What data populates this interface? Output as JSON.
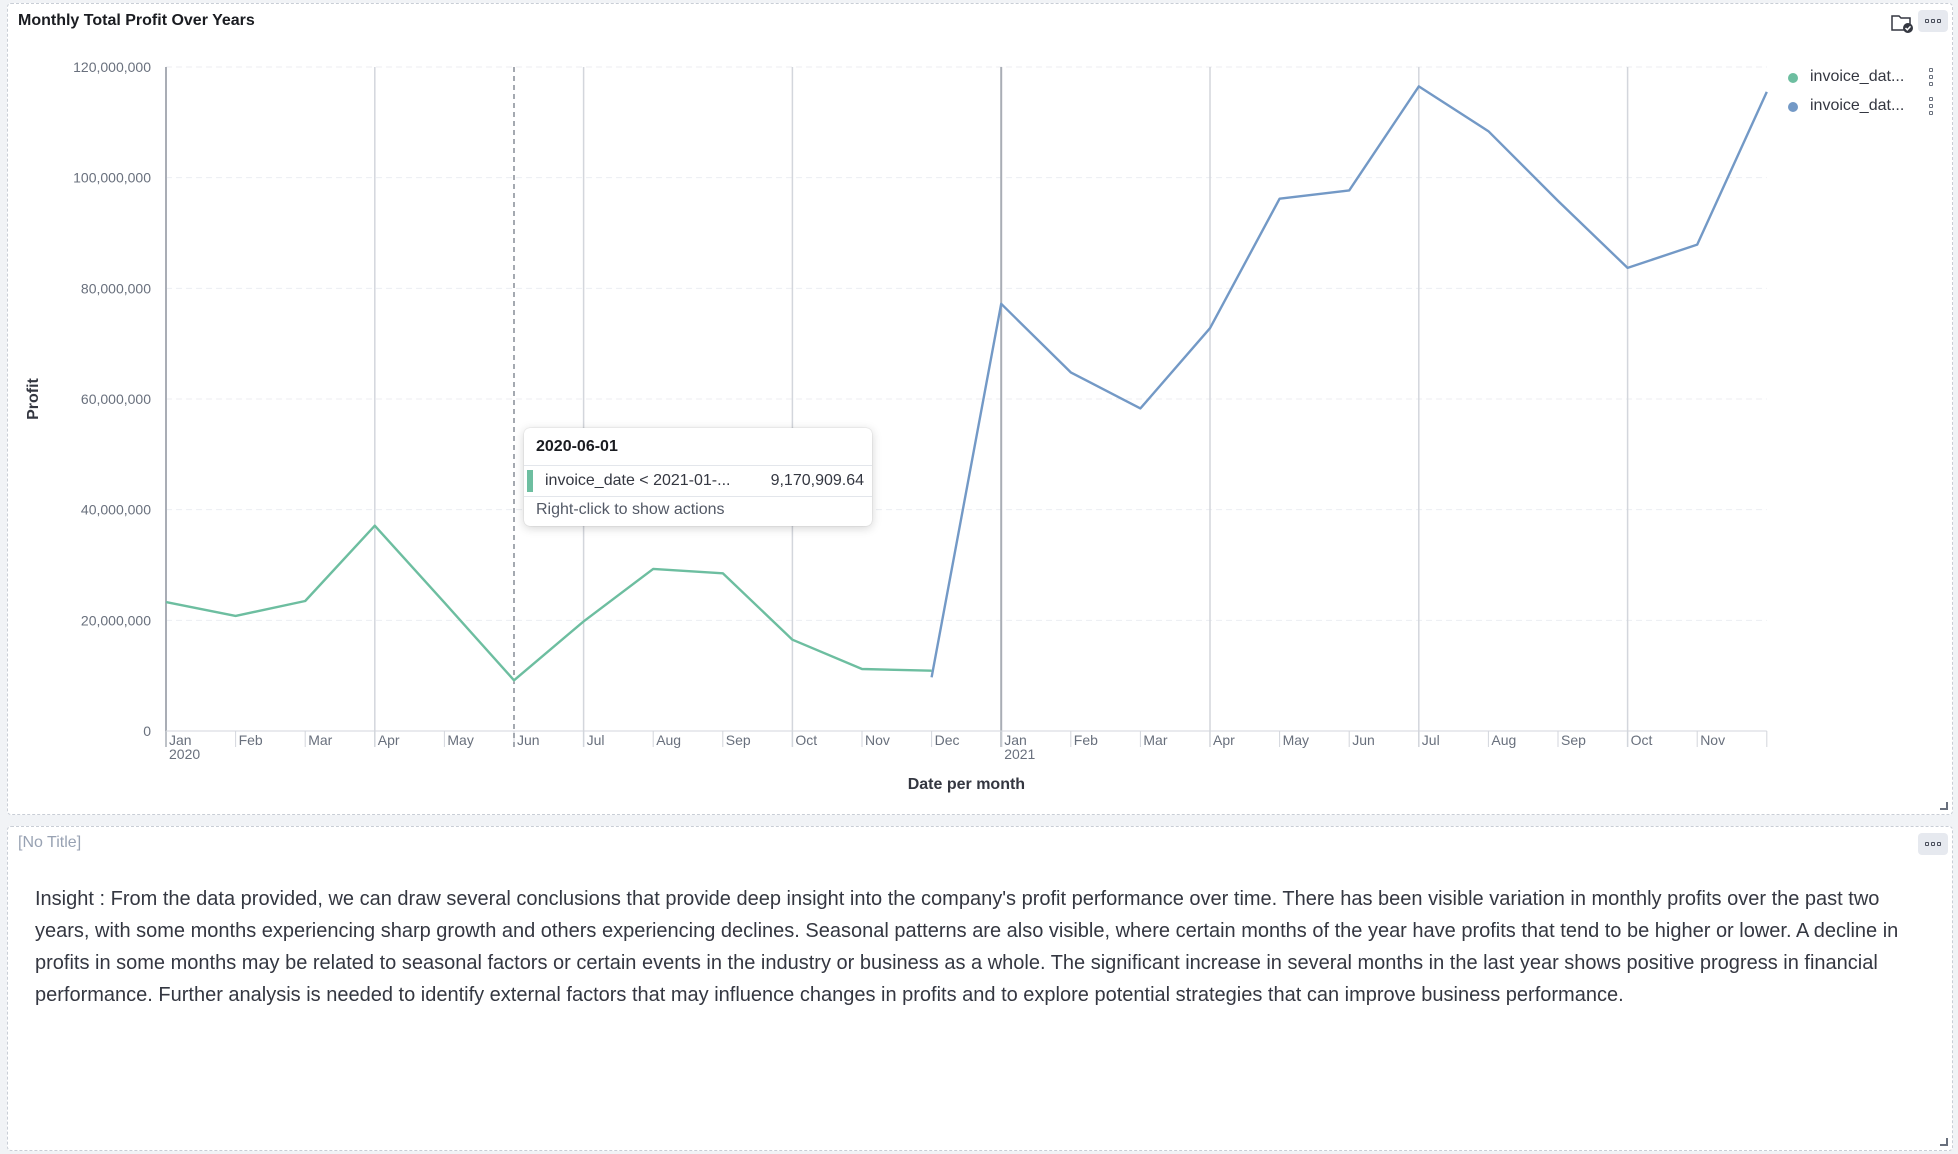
{
  "chart_panel": {
    "title": "Monthly Total Profit Over Years",
    "icons": {
      "folder": "folder-check-icon",
      "menu": "more-options-icon"
    }
  },
  "chart_data": {
    "type": "line",
    "ylabel": "Profit",
    "xlabel": "Date per month",
    "ylim": [
      0,
      120000000
    ],
    "y_ticks": [
      "0",
      "20,000,000",
      "40,000,000",
      "60,000,000",
      "80,000,000",
      "100,000,000",
      "120,000,000"
    ],
    "y_tick_values": [
      0,
      20000000,
      40000000,
      60000000,
      80000000,
      100000000,
      120000000
    ],
    "x_tick_labels": [
      "Jan",
      "Feb",
      "Mar",
      "Apr",
      "May",
      "Jun",
      "Jul",
      "Aug",
      "Sep",
      "Oct",
      "Nov",
      "Dec",
      "Jan",
      "Feb",
      "Mar",
      "Apr",
      "May",
      "Jun",
      "Jul",
      "Aug",
      "Sep",
      "Oct",
      "Nov"
    ],
    "x_year_labels": [
      {
        "index": 0,
        "label": "2020"
      },
      {
        "index": 12,
        "label": "2021"
      }
    ],
    "grid": true,
    "legend_position": "right",
    "series": [
      {
        "name": "invoice_dat...",
        "color": "#6dbea0",
        "start_month_index": 0,
        "values": [
          23300000,
          20800000,
          23500000,
          37100000,
          23200000,
          9170909.64,
          19800000,
          29300000,
          28500000,
          16500000,
          11200000,
          10900000
        ]
      },
      {
        "name": "invoice_dat...",
        "color": "#7399c6",
        "start_month_index": 11,
        "values": [
          9700000,
          77200000,
          64800000,
          58300000,
          72800000,
          96200000,
          97700000,
          116500000,
          108400000,
          95800000,
          83700000,
          87900000,
          115500000
        ]
      }
    ]
  },
  "tooltip": {
    "date": "2020-06-01",
    "label": "invoice_date < 2021-01-...",
    "value": "9,170,909.64",
    "hint": "Right-click to show actions",
    "color": "#6dbea0"
  },
  "text_panel": {
    "title": "[No Title]",
    "insight": "Insight : From the data provided, we can draw several conclusions that provide deep insight into the company's profit performance over time. There has been visible variation in monthly profits over the past two years, with some months experiencing sharp growth and others experiencing declines. Seasonal patterns are also visible, where certain months of the year have profits that tend to be higher or lower. A decline in profits in some months may be related to seasonal factors or certain events in the industry or business as a whole. The significant increase in several months in the last year shows positive progress in financial performance. Further analysis is needed to identify external factors that may influence changes in profits and to explore potential strategies that can improve business performance."
  }
}
